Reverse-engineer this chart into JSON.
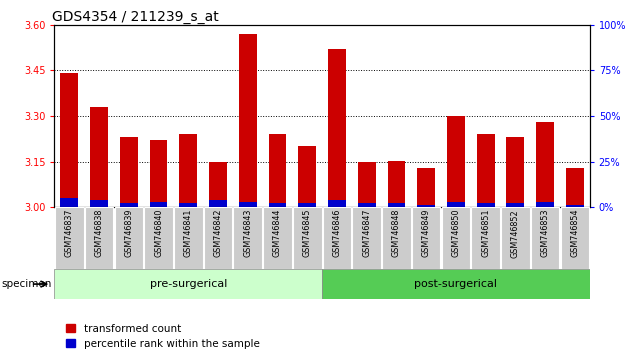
{
  "title": "GDS4354 / 211239_s_at",
  "samples": [
    "GSM746837",
    "GSM746838",
    "GSM746839",
    "GSM746840",
    "GSM746841",
    "GSM746842",
    "GSM746843",
    "GSM746844",
    "GSM746845",
    "GSM746846",
    "GSM746847",
    "GSM746848",
    "GSM746849",
    "GSM746850",
    "GSM746851",
    "GSM746852",
    "GSM746853",
    "GSM746854"
  ],
  "red_values": [
    3.44,
    3.33,
    3.23,
    3.22,
    3.24,
    3.15,
    3.57,
    3.24,
    3.2,
    3.52,
    3.148,
    3.152,
    3.13,
    3.3,
    3.24,
    3.23,
    3.28,
    3.13
  ],
  "blue_values": [
    5,
    4,
    2,
    3,
    2,
    4,
    3,
    2,
    2,
    4,
    2,
    2,
    1,
    3,
    2,
    2,
    3,
    1
  ],
  "pre_surgical_count": 9,
  "post_surgical_count": 9,
  "ylim_left": [
    3.0,
    3.6
  ],
  "ylim_right": [
    0,
    100
  ],
  "yticks_left": [
    3.0,
    3.15,
    3.3,
    3.45,
    3.6
  ],
  "yticks_right": [
    0,
    25,
    50,
    75,
    100
  ],
  "grid_values": [
    3.15,
    3.3,
    3.45
  ],
  "bar_width": 0.6,
  "bar_color_red": "#cc0000",
  "bar_color_blue": "#0000cc",
  "bg_color_pre": "#ccffcc",
  "bg_color_post": "#55cc55",
  "bg_color_xticklabels": "#dddddd",
  "legend_red_label": "transformed count",
  "legend_blue_label": "percentile rank within the sample",
  "pre_label": "pre-surgerical",
  "post_label": "post-surgerical",
  "specimen_label": "specimen",
  "title_fontsize": 10,
  "tick_fontsize": 7,
  "label_fontsize": 8
}
